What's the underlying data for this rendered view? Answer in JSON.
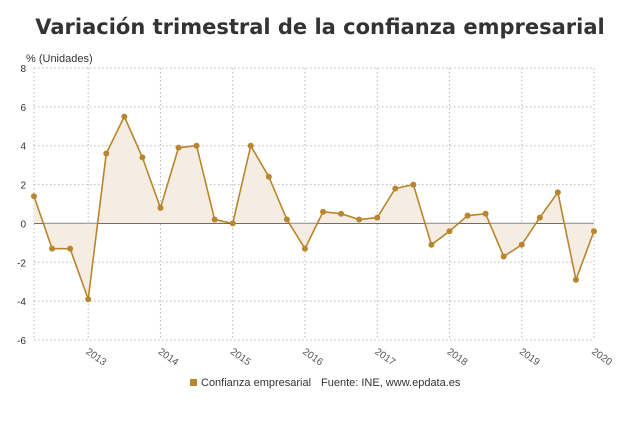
{
  "chart_data": {
    "type": "area",
    "title": "Variación trimestral de la confianza empresarial",
    "ylabel": "% (Unidades)",
    "ylim": [
      -6,
      8
    ],
    "yticks": [
      -6,
      -4,
      -2,
      0,
      2,
      4,
      6,
      8
    ],
    "x_tick_labels": [
      "2013",
      "2014",
      "2015",
      "2016",
      "2017",
      "2018",
      "2019",
      "2020"
    ],
    "grid": true,
    "legend_position": "bottom",
    "series": [
      {
        "name": "Confianza empresarial",
        "color": "#b8862e",
        "fill": "#f5ece2",
        "values": [
          1.4,
          -1.3,
          -1.3,
          -3.9,
          3.6,
          5.5,
          3.4,
          0.8,
          3.9,
          4.0,
          0.2,
          0.0,
          4.0,
          2.4,
          0.2,
          -1.3,
          0.6,
          0.5,
          0.2,
          0.3,
          1.8,
          2.0,
          -1.1,
          -0.4,
          0.4,
          0.5,
          -1.7,
          -1.1,
          0.3,
          1.6,
          -2.9,
          -0.4
        ]
      }
    ],
    "source": "Fuente: INE, www.epdata.es"
  }
}
